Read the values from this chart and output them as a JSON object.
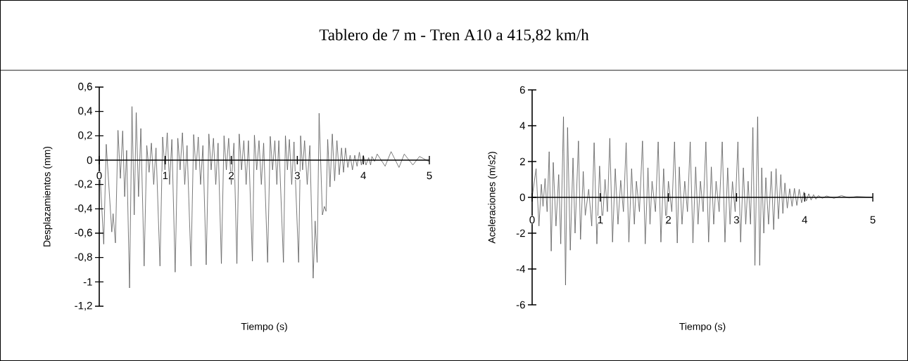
{
  "chart_data": [
    {
      "type": "line",
      "title": "Tablero de 7 m - Tren  A10 a 415,82 km/h",
      "xlabel": "Tiempo (s)",
      "ylabel": "Desplazamientos (mm)",
      "color": "#595959",
      "xlim": [
        0,
        5
      ],
      "ylim": [
        -1.2,
        0.6
      ],
      "xticks": [
        0,
        1,
        2,
        3,
        4,
        5
      ],
      "yticks": [
        {
          "value": -1.2,
          "label": "-1,2"
        },
        {
          "value": -1,
          "label": "-1"
        },
        {
          "value": -0.8,
          "label": "-0,8"
        },
        {
          "value": -0.6,
          "label": "-0,6"
        },
        {
          "value": -0.4,
          "label": "-0,4"
        },
        {
          "value": -0.2,
          "label": "-0,2"
        },
        0,
        {
          "value": 0.2,
          "label": "0,2"
        },
        {
          "value": 0.4,
          "label": "0,4"
        },
        {
          "value": 0.6,
          "label": "0,6"
        }
      ],
      "x": [
        0,
        0.068,
        0.106,
        0.19,
        0.21,
        0.245,
        0.284,
        0.32,
        0.355,
        0.385,
        0.415,
        0.459,
        0.496,
        0.53,
        0.56,
        0.595,
        0.63,
        0.68,
        0.72,
        0.755,
        0.79,
        0.825,
        0.86,
        0.92,
        0.96,
        0.995,
        1.03,
        1.065,
        1.1,
        1.15,
        1.19,
        1.225,
        1.26,
        1.295,
        1.33,
        1.39,
        1.43,
        1.465,
        1.5,
        1.535,
        1.57,
        1.62,
        1.66,
        1.695,
        1.73,
        1.765,
        1.8,
        1.85,
        1.89,
        1.925,
        1.96,
        2.0,
        2.04,
        2.085,
        2.12,
        2.155,
        2.19,
        2.225,
        2.26,
        2.32,
        2.35,
        2.385,
        2.42,
        2.455,
        2.49,
        2.55,
        2.59,
        2.625,
        2.66,
        2.69,
        2.72,
        2.79,
        2.82,
        2.85,
        2.88,
        2.915,
        2.95,
        3.02,
        3.05,
        3.08,
        3.11,
        3.15,
        3.19,
        3.24,
        3.27,
        3.3,
        3.33,
        3.38,
        3.41,
        3.435,
        3.46,
        3.495,
        3.53,
        3.565,
        3.6,
        3.635,
        3.67,
        3.7,
        3.73,
        3.765,
        3.8,
        3.835,
        3.87,
        3.905,
        3.94,
        3.97,
        4.0,
        4.04,
        4.08,
        4.11,
        4.13,
        4.17,
        4.21,
        4.33,
        4.42,
        4.54,
        4.62,
        4.75,
        4.85,
        4.99
      ],
      "values": [
        0,
        -0.69,
        0.13,
        -0.59,
        -0.44,
        -0.68,
        0.245,
        -0.15,
        0.24,
        -0.3,
        0.08,
        -1.05,
        0.44,
        -0.45,
        0.39,
        -0.3,
        0.26,
        -0.87,
        0.12,
        -0.1,
        0.14,
        -0.2,
        0.1,
        -0.87,
        0.19,
        -0.08,
        0.225,
        -0.2,
        0.17,
        -0.92,
        0.18,
        -0.08,
        0.225,
        -0.2,
        0.12,
        -0.87,
        0.21,
        -0.08,
        0.19,
        -0.2,
        0.12,
        -0.86,
        0.215,
        -0.08,
        0.18,
        -0.2,
        0.14,
        -0.85,
        0.2,
        -0.08,
        0.18,
        -0.2,
        0.14,
        -0.85,
        0.215,
        -0.08,
        0.16,
        -0.2,
        0.16,
        -0.83,
        0.205,
        -0.08,
        0.16,
        -0.2,
        0.14,
        -0.84,
        0.195,
        -0.08,
        0.16,
        -0.2,
        0.16,
        -0.84,
        0.2,
        -0.08,
        0.17,
        -0.2,
        0.15,
        -0.84,
        0.2,
        -0.08,
        0.16,
        -0.2,
        0.12,
        -0.97,
        -0.5,
        -0.84,
        0.385,
        -0.45,
        -0.38,
        -0.42,
        0.17,
        -0.22,
        0.215,
        -0.17,
        0.16,
        -0.12,
        0.1,
        -0.1,
        0.1,
        -0.06,
        0.04,
        -0.08,
        0.04,
        -0.05,
        0.065,
        -0.04,
        0.04,
        -0.04,
        0.02,
        -0.04,
        0.03,
        -0.01,
        0.05,
        -0.05,
        0.07,
        -0.06,
        0.05,
        -0.04,
        0.03,
        -0.01
      ]
    },
    {
      "type": "line",
      "xlabel": "Tiempo (s)",
      "ylabel": "Aceleraciones (m/s2)",
      "color": "#595959",
      "xlim": [
        0,
        5
      ],
      "ylim": [
        -6,
        6
      ],
      "xticks": [
        0,
        1,
        2,
        3,
        4,
        5
      ],
      "yticks": [
        -6,
        -4,
        -2,
        0,
        2,
        4,
        6
      ],
      "x": [
        0,
        0.058,
        0.1,
        0.135,
        0.16,
        0.19,
        0.22,
        0.25,
        0.28,
        0.31,
        0.35,
        0.39,
        0.42,
        0.46,
        0.49,
        0.52,
        0.56,
        0.6,
        0.63,
        0.68,
        0.71,
        0.75,
        0.78,
        0.83,
        0.875,
        0.91,
        0.95,
        0.99,
        1.03,
        1.07,
        1.105,
        1.14,
        1.18,
        1.22,
        1.26,
        1.3,
        1.34,
        1.38,
        1.42,
        1.46,
        1.5,
        1.53,
        1.575,
        1.62,
        1.66,
        1.7,
        1.73,
        1.76,
        1.81,
        1.85,
        1.89,
        1.93,
        1.965,
        2.0,
        2.05,
        2.09,
        2.13,
        2.16,
        2.2,
        2.24,
        2.28,
        2.32,
        2.36,
        2.4,
        2.435,
        2.47,
        2.51,
        2.55,
        2.59,
        2.63,
        2.665,
        2.7,
        2.745,
        2.79,
        2.83,
        2.87,
        2.905,
        2.94,
        2.98,
        3.02,
        3.06,
        3.1,
        3.135,
        3.17,
        3.205,
        3.24,
        3.27,
        3.31,
        3.34,
        3.37,
        3.4,
        3.43,
        3.47,
        3.51,
        3.545,
        3.58,
        3.615,
        3.65,
        3.68,
        3.71,
        3.745,
        3.78,
        3.815,
        3.85,
        3.885,
        3.92,
        3.955,
        3.99,
        4.025,
        4.06,
        4.095,
        4.13,
        4.165,
        4.2,
        4.26,
        4.32,
        4.43,
        4.54,
        4.65,
        4.76,
        4.99
      ],
      "values": [
        0,
        1.6,
        -1.6,
        0.73,
        -0.5,
        1.05,
        -0.8,
        2.55,
        -3.0,
        1.95,
        -1.6,
        1.27,
        -2.6,
        4.5,
        -4.9,
        3.9,
        -2.95,
        2.2,
        -2.0,
        3.15,
        -2.35,
        1.45,
        -1.0,
        0.45,
        -1.6,
        3.05,
        -2.6,
        1.75,
        -1.5,
        1.0,
        -0.8,
        3.3,
        -2.5,
        1.6,
        -1.5,
        0.95,
        -0.8,
        3.05,
        -2.5,
        1.6,
        -1.5,
        0.9,
        -0.8,
        3.15,
        -2.6,
        1.65,
        -1.5,
        0.9,
        -0.8,
        3.1,
        -2.5,
        1.6,
        -1.5,
        0.9,
        -0.8,
        3.1,
        -2.55,
        1.7,
        -1.5,
        0.9,
        -0.8,
        3.1,
        -2.55,
        1.7,
        -1.5,
        0.9,
        -0.8,
        3.1,
        -2.5,
        1.7,
        -1.5,
        0.9,
        -0.8,
        3.1,
        -2.5,
        1.65,
        -1.5,
        0.88,
        -0.8,
        3.1,
        -2.5,
        1.65,
        -1.5,
        0.9,
        -1.5,
        3.9,
        -3.8,
        4.5,
        -3.8,
        1.65,
        -2.0,
        1.1,
        -1.5,
        1.45,
        -1.8,
        1.6,
        -1.2,
        1.27,
        -0.9,
        0.8,
        -0.6,
        0.48,
        -0.5,
        0.5,
        -0.45,
        0.45,
        -0.3,
        0.3,
        -0.2,
        0.2,
        -0.15,
        0.15,
        -0.1,
        0.1,
        -0.05,
        0.08,
        -0.05,
        0.1,
        -0.03,
        0.05,
        0
      ]
    }
  ]
}
